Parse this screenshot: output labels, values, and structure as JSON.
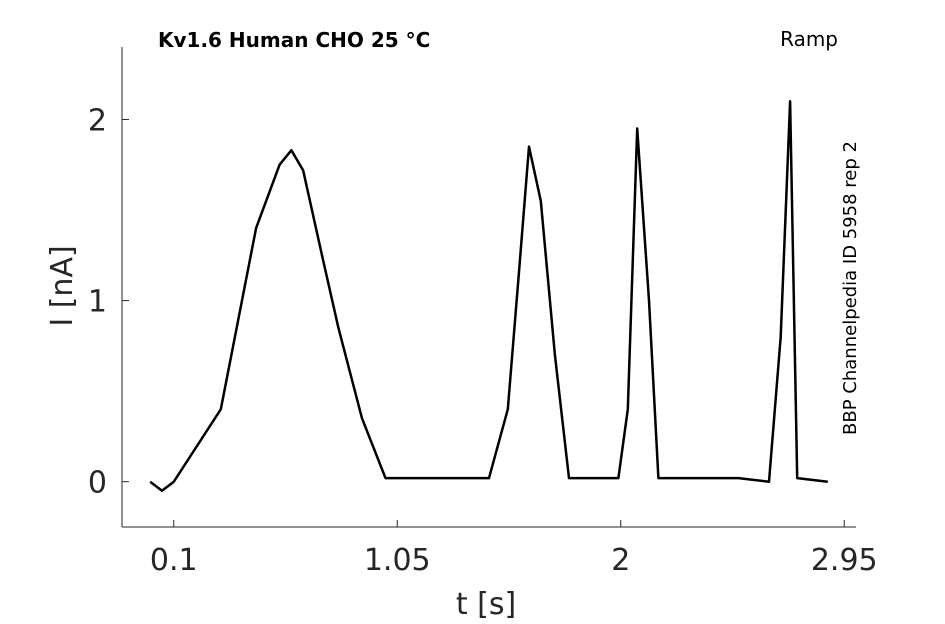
{
  "chart_data": {
    "type": "line",
    "title": "Kv1.6  Human  CHO  25 °C",
    "protocol": "Ramp",
    "side_label": "BBP Channelpedia ID 5958 rep 2",
    "xlabel": "t [s]",
    "ylabel": "I [nA]",
    "xlim": [
      -0.12,
      3.0
    ],
    "ylim": [
      -0.25,
      2.4
    ],
    "xticks": [
      0.1,
      1.05,
      2,
      2.95
    ],
    "xtick_labels": [
      "0.1",
      "1.05",
      "2",
      "2.95"
    ],
    "yticks": [
      0,
      1,
      2
    ],
    "ytick_labels": [
      "0",
      "1",
      "2"
    ],
    "grid": false,
    "line_color": "#000000",
    "series": [
      {
        "x": [
          0.0,
          0.05,
          0.1,
          0.2,
          0.3,
          0.45,
          0.55,
          0.6,
          0.65,
          0.73,
          0.8,
          0.9,
          1.0,
          1.05,
          1.25,
          1.44,
          1.52,
          1.57,
          1.61,
          1.66,
          1.72,
          1.78,
          1.88,
          1.99,
          2.03,
          2.07,
          2.12,
          2.16,
          2.25,
          2.5,
          2.63,
          2.68,
          2.72,
          2.75,
          2.88
        ],
        "y": [
          0.0,
          -0.05,
          0.0,
          0.2,
          0.4,
          1.4,
          1.75,
          1.83,
          1.72,
          1.25,
          0.85,
          0.35,
          0.02,
          0.02,
          0.02,
          0.02,
          0.4,
          1.2,
          1.85,
          1.55,
          0.7,
          0.02,
          0.02,
          0.02,
          0.4,
          1.95,
          1.0,
          0.02,
          0.02,
          0.02,
          0.0,
          0.8,
          2.1,
          0.02,
          0.0
        ]
      }
    ]
  }
}
